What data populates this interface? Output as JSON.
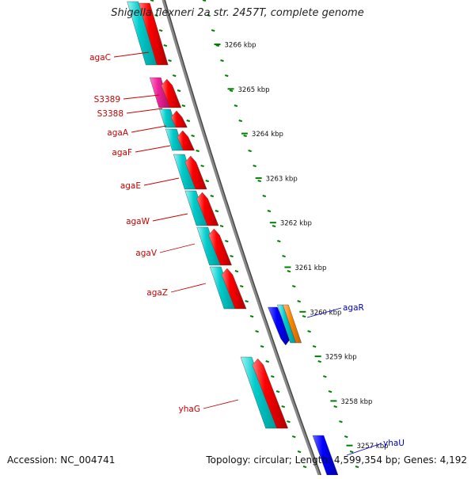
{
  "title": "Shigella flexneri 2a str. 2457T, complete genome",
  "accession": "Accession: NC_004741",
  "summary": "Topology: circular; Length: 4,599,354 bp; Genes: 4,192",
  "ticks": [
    {
      "label": "3266 kbp",
      "kbp": 3266
    },
    {
      "label": "3265 kbp",
      "kbp": 3265
    },
    {
      "label": "3264 kbp",
      "kbp": 3264
    },
    {
      "label": "3263 kbp",
      "kbp": 3263
    },
    {
      "label": "3262 kbp",
      "kbp": 3262
    },
    {
      "label": "3261 kbp",
      "kbp": 3261
    },
    {
      "label": "3260 kbp",
      "kbp": 3260
    },
    {
      "label": "3259 kbp",
      "kbp": 3259
    },
    {
      "label": "3258 kbp",
      "kbp": 3258
    },
    {
      "label": "3257 kbp",
      "kbp": 3257
    }
  ],
  "gene_labels": [
    {
      "name": "agaC",
      "color": "#cc0000"
    },
    {
      "name": "S3389",
      "color": "#cc0000"
    },
    {
      "name": "S3388",
      "color": "#cc0000"
    },
    {
      "name": "agaA",
      "color": "#cc0000"
    },
    {
      "name": "agaF",
      "color": "#cc0000"
    },
    {
      "name": "agaE",
      "color": "#cc0000"
    },
    {
      "name": "agaW",
      "color": "#cc0000"
    },
    {
      "name": "agaV",
      "color": "#cc0000"
    },
    {
      "name": "agaZ",
      "color": "#cc0000"
    },
    {
      "name": "yhaG",
      "color": "#cc0000"
    },
    {
      "name": "agaR",
      "color": "#0000cc"
    },
    {
      "name": "yhaU",
      "color": "#0000cc"
    }
  ],
  "colors": {
    "forward_cds": "#ff0000",
    "reverse_cds": "#0000ff",
    "gene_span": "#00cccc",
    "rna": "#ee2299",
    "other": "#ff8800",
    "backbone": "#888888",
    "tick": "#008000"
  }
}
